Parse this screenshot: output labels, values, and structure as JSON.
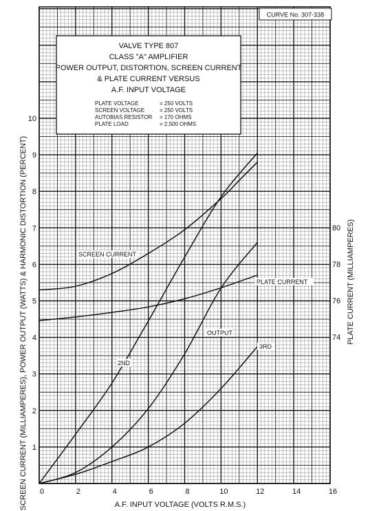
{
  "chart_data": {
    "type": "line",
    "curve_id": "CURVE No. 307-338",
    "title_lines": [
      "VALVE TYPE 807",
      "CLASS \"A\" AMPLIFIER",
      "POWER OUTPUT, DISTORTION, SCREEN CURRENT",
      "& PLATE CURRENT VERSUS",
      "A.F. INPUT VOLTAGE"
    ],
    "conditions": [
      {
        "label": "PLATE VOLTAGE",
        "value": "= 250 VOLTS"
      },
      {
        "label": "SCREEN VOLTAGE",
        "value": "= 250 VOLTS"
      },
      {
        "label": "AUTOBIAS RESISTOR",
        "value": "= 170 OHMS"
      },
      {
        "label": "PLATE LOAD",
        "value": "= 2,500 OHMS"
      }
    ],
    "xlabel": "A.F. INPUT VOLTAGE (VOLTS R.M.S.)",
    "ylabel_left": "SCREEN CURRENT (MILLIAMPERES), POWER OUTPUT (WATTS) & HARMONIC DISTORTION (PERCENT)",
    "ylabel_right": "PLATE CURRENT (MILLIAMPERES)",
    "xlim": [
      0,
      16
    ],
    "ylim_left": [
      0,
      10
    ],
    "ylim_right": [
      70,
      81.5
    ],
    "x_ticks": [
      "0",
      "2",
      "4",
      "6",
      "8",
      "10",
      "12",
      "14",
      "16"
    ],
    "y_ticks_left": [
      "1",
      "2",
      "3",
      "4",
      "5",
      "6",
      "7",
      "8",
      "9",
      "10"
    ],
    "y_ticks_right": [
      "74",
      "76",
      "78",
      "80"
    ],
    "grid": true,
    "series": [
      {
        "name": "SCREEN CURRENT",
        "axis": "left",
        "x": [
          0,
          2,
          4,
          6,
          8,
          10,
          11,
          12
        ],
        "y": [
          5.3,
          5.4,
          5.75,
          6.3,
          6.95,
          7.8,
          8.3,
          8.8
        ]
      },
      {
        "name": "PLATE CURRENT",
        "axis": "right",
        "x": [
          0,
          2,
          4,
          6,
          8,
          10,
          12
        ],
        "y": [
          74.9,
          75.1,
          75.35,
          75.65,
          76.1,
          76.7,
          77.4
        ]
      },
      {
        "name": "OUTPUT",
        "axis": "left",
        "x": [
          0,
          2,
          4,
          6,
          8,
          10,
          12
        ],
        "y": [
          0,
          0.3,
          1.0,
          2.05,
          3.55,
          5.35,
          6.6
        ]
      },
      {
        "name": "2ND",
        "axis": "left",
        "x": [
          0,
          2,
          4,
          6,
          8,
          10,
          12
        ],
        "y": [
          0,
          1.35,
          2.75,
          4.45,
          6.2,
          7.85,
          9.05
        ]
      },
      {
        "name": "3RD",
        "axis": "left",
        "x": [
          0,
          2,
          4,
          6,
          8,
          10,
          12
        ],
        "y": [
          0,
          0.25,
          0.6,
          1.0,
          1.65,
          2.6,
          3.75
        ]
      }
    ]
  }
}
